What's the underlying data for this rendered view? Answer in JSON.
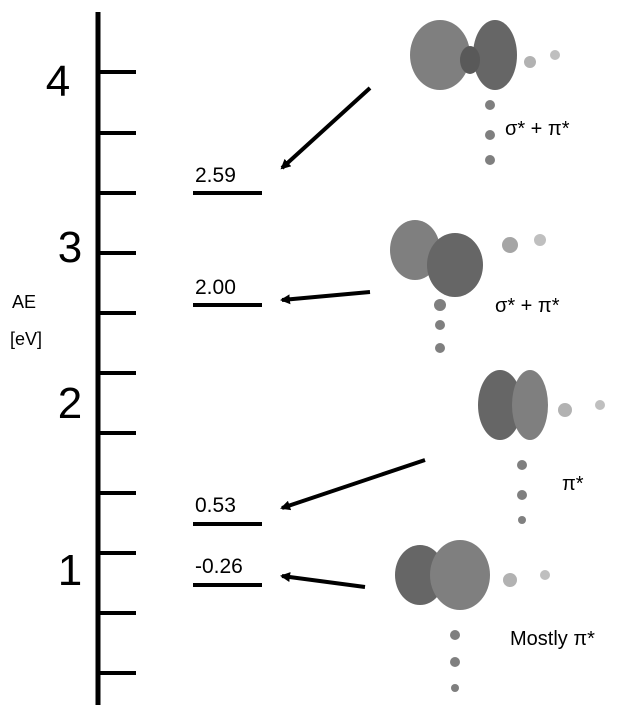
{
  "axis": {
    "label": [
      "AE",
      "[eV]"
    ],
    "tick_labels": [
      "4",
      "3",
      "2",
      "1"
    ]
  },
  "levels": [
    {
      "value": "2.59",
      "orbital": "σ* + π*"
    },
    {
      "value": "2.00",
      "orbital": "σ* + π*"
    },
    {
      "value": "0.53",
      "orbital": "π*"
    },
    {
      "value": "-0.26",
      "orbital": "Mostly π*"
    }
  ]
}
